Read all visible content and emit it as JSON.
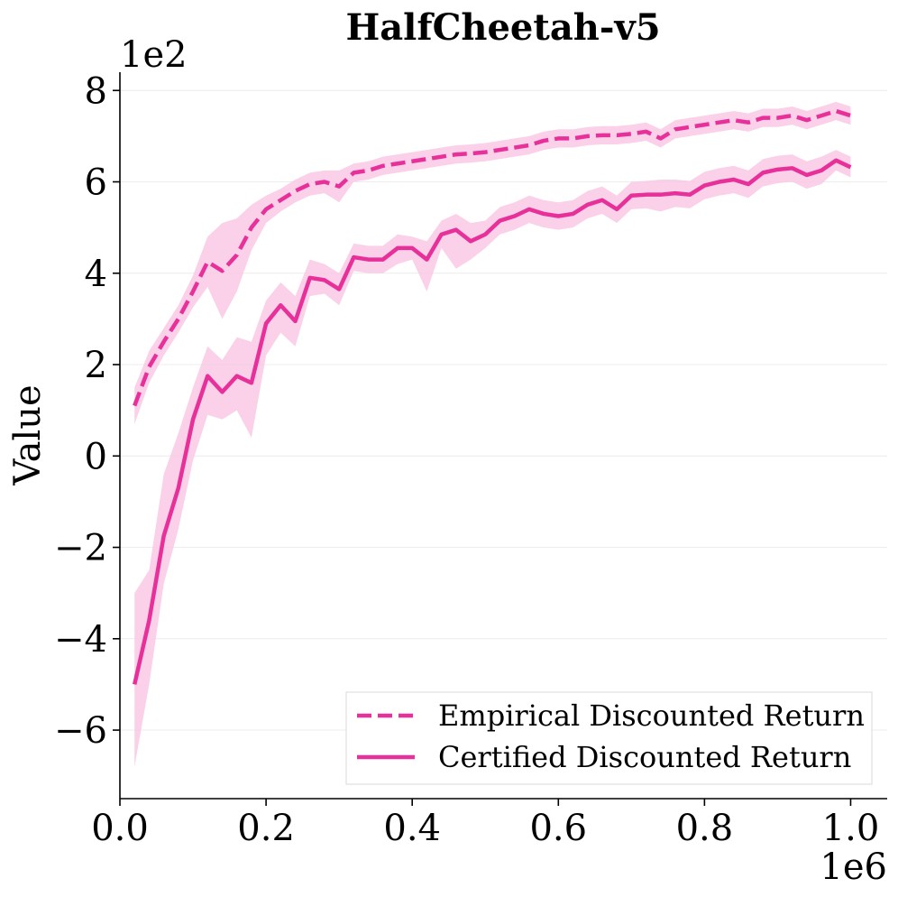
{
  "chart_data": {
    "type": "line",
    "title": "HalfCheetah-v5",
    "xlabel": "",
    "ylabel": "Value",
    "x_multiplier_label": "1e6",
    "y_multiplier_label": "1e2",
    "xlim": [
      0.0,
      1.05
    ],
    "ylim": [
      -7.5,
      8.4
    ],
    "x_ticks": [
      0.0,
      0.2,
      0.4,
      0.6,
      0.8,
      1.0
    ],
    "x_tick_labels": [
      "0.0",
      "0.2",
      "0.4",
      "0.6",
      "0.8",
      "1.0"
    ],
    "y_ticks": [
      -6,
      -4,
      -2,
      0,
      2,
      4,
      6,
      8
    ],
    "y_tick_labels": [
      "−6",
      "−4",
      "−2",
      "0",
      "2",
      "4",
      "6",
      "8"
    ],
    "grid": "horizontal",
    "legend_position": "lower-right",
    "color": "#e8309a",
    "band_color": "#f9c9e4",
    "x": [
      0.02,
      0.04,
      0.06,
      0.08,
      0.1,
      0.12,
      0.14,
      0.16,
      0.18,
      0.2,
      0.22,
      0.24,
      0.26,
      0.28,
      0.3,
      0.32,
      0.34,
      0.36,
      0.38,
      0.4,
      0.42,
      0.44,
      0.46,
      0.48,
      0.5,
      0.52,
      0.54,
      0.56,
      0.58,
      0.6,
      0.62,
      0.64,
      0.66,
      0.68,
      0.7,
      0.72,
      0.74,
      0.76,
      0.78,
      0.8,
      0.82,
      0.84,
      0.86,
      0.88,
      0.9,
      0.92,
      0.94,
      0.96,
      0.98,
      1.0
    ],
    "series": [
      {
        "name": "Empirical Discounted Return",
        "dash": "dashed",
        "values": [
          1.1,
          1.95,
          2.5,
          3.0,
          3.6,
          4.25,
          4.05,
          4.4,
          5.0,
          5.4,
          5.6,
          5.8,
          5.95,
          6.0,
          5.9,
          6.2,
          6.25,
          6.35,
          6.4,
          6.45,
          6.5,
          6.55,
          6.6,
          6.62,
          6.65,
          6.7,
          6.75,
          6.8,
          6.9,
          6.95,
          6.95,
          7.0,
          7.02,
          7.02,
          7.05,
          7.1,
          6.95,
          7.15,
          7.2,
          7.25,
          7.3,
          7.35,
          7.3,
          7.4,
          7.4,
          7.45,
          7.35,
          7.45,
          7.55,
          7.45
        ],
        "lower": [
          0.7,
          1.6,
          2.2,
          2.7,
          3.25,
          3.7,
          3.0,
          3.6,
          4.5,
          5.1,
          5.35,
          5.55,
          5.7,
          5.75,
          5.55,
          6.0,
          6.05,
          6.15,
          6.2,
          6.25,
          6.3,
          6.35,
          6.4,
          6.42,
          6.45,
          6.5,
          6.55,
          6.6,
          6.7,
          6.75,
          6.75,
          6.8,
          6.82,
          6.82,
          6.85,
          6.9,
          6.75,
          6.95,
          7.0,
          7.05,
          7.1,
          7.15,
          7.1,
          7.2,
          7.2,
          7.25,
          7.15,
          7.25,
          7.35,
          7.25
        ],
        "upper": [
          1.5,
          2.3,
          2.8,
          3.3,
          3.95,
          4.8,
          5.1,
          5.2,
          5.5,
          5.7,
          5.85,
          6.05,
          6.2,
          6.25,
          6.25,
          6.4,
          6.45,
          6.55,
          6.6,
          6.65,
          6.7,
          6.75,
          6.8,
          6.82,
          6.85,
          6.9,
          6.95,
          7.0,
          7.1,
          7.15,
          7.15,
          7.2,
          7.22,
          7.22,
          7.25,
          7.3,
          7.15,
          7.35,
          7.4,
          7.45,
          7.5,
          7.55,
          7.5,
          7.6,
          7.6,
          7.65,
          7.55,
          7.65,
          7.75,
          7.65
        ]
      },
      {
        "name": "Certified Discounted Return",
        "dash": "solid",
        "values": [
          -5.0,
          -3.6,
          -1.75,
          -0.7,
          0.8,
          1.75,
          1.4,
          1.75,
          1.6,
          2.9,
          3.3,
          2.95,
          3.9,
          3.85,
          3.65,
          4.35,
          4.3,
          4.3,
          4.55,
          4.55,
          4.3,
          4.85,
          4.95,
          4.7,
          4.85,
          5.15,
          5.25,
          5.4,
          5.3,
          5.25,
          5.3,
          5.5,
          5.6,
          5.4,
          5.7,
          5.72,
          5.72,
          5.75,
          5.72,
          5.92,
          6.0,
          6.05,
          5.95,
          6.2,
          6.27,
          6.3,
          6.15,
          6.25,
          6.47,
          6.32
        ],
        "lower": [
          -6.8,
          -5.0,
          -2.8,
          -1.6,
          -0.1,
          0.9,
          0.8,
          1.0,
          0.4,
          2.2,
          2.7,
          2.4,
          3.5,
          3.55,
          3.3,
          4.05,
          4.0,
          4.0,
          4.2,
          4.3,
          3.6,
          4.55,
          4.1,
          4.3,
          4.55,
          4.85,
          4.95,
          5.1,
          5.0,
          4.95,
          5.0,
          5.2,
          5.3,
          5.1,
          5.4,
          5.42,
          5.35,
          5.45,
          5.42,
          5.62,
          5.7,
          5.75,
          5.65,
          5.9,
          5.97,
          6.0,
          5.85,
          5.95,
          6.25,
          6.1
        ],
        "upper": [
          -3.0,
          -2.5,
          -0.4,
          0.5,
          1.5,
          2.4,
          2.1,
          2.6,
          2.5,
          3.4,
          3.8,
          3.5,
          4.3,
          4.2,
          4.0,
          4.65,
          4.6,
          4.6,
          4.85,
          4.8,
          4.7,
          5.15,
          5.3,
          5.1,
          5.15,
          5.45,
          5.55,
          5.7,
          5.6,
          5.55,
          5.6,
          5.8,
          5.9,
          5.7,
          6.0,
          6.02,
          6.05,
          6.05,
          6.02,
          6.22,
          6.3,
          6.35,
          6.25,
          6.5,
          6.57,
          6.6,
          6.45,
          6.55,
          6.7,
          6.55
        ]
      }
    ]
  }
}
